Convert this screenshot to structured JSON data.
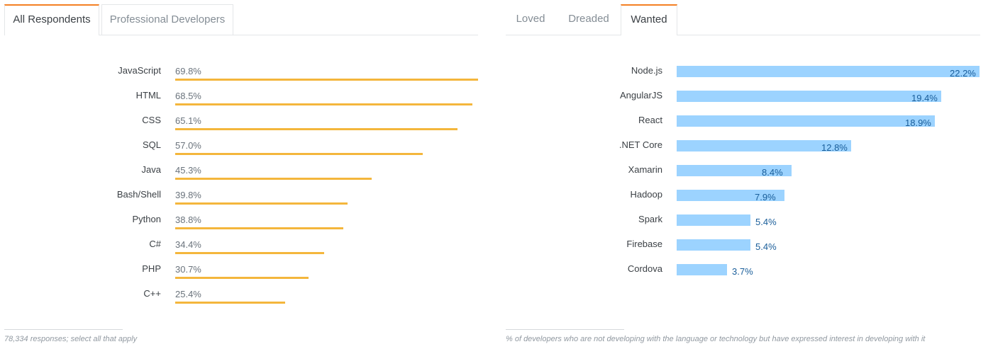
{
  "left": {
    "tabs": [
      {
        "label": "All Respondents",
        "active": true
      },
      {
        "label": "Professional Developers",
        "active": false
      }
    ],
    "footnote": "78,334 responses; select all that apply"
  },
  "right": {
    "tabs": [
      {
        "label": "Loved",
        "active": false
      },
      {
        "label": "Dreaded",
        "active": false
      },
      {
        "label": "Wanted",
        "active": true
      }
    ],
    "footnote": "% of developers who are not developing with the language or technology but have expressed interest in developing with it"
  },
  "colors": {
    "left_bar": "#f4b63c",
    "right_bar": "#9cd3ff",
    "right_value_text": "#1a5e9a",
    "active_tab_accent": "#f48024"
  },
  "chart_data": [
    {
      "type": "bar",
      "orientation": "horizontal",
      "categories": [
        "JavaScript",
        "HTML",
        "CSS",
        "SQL",
        "Java",
        "Bash/Shell",
        "Python",
        "C#",
        "PHP",
        "C++"
      ],
      "values": [
        69.8,
        68.5,
        65.1,
        57.0,
        45.3,
        39.8,
        38.8,
        34.4,
        30.7,
        25.4
      ],
      "value_labels": [
        "69.8%",
        "68.5%",
        "65.1%",
        "57.0%",
        "45.3%",
        "39.8%",
        "38.8%",
        "34.4%",
        "30.7%",
        "25.4%"
      ],
      "xlim": [
        0,
        69.8
      ],
      "grid": false
    },
    {
      "type": "bar",
      "orientation": "horizontal",
      "categories": [
        "Node.js",
        "AngularJS",
        "React",
        ".NET Core",
        "Xamarin",
        "Hadoop",
        "Spark",
        "Firebase",
        "Cordova"
      ],
      "values": [
        22.2,
        19.4,
        18.9,
        12.8,
        8.4,
        7.9,
        5.4,
        5.4,
        3.7
      ],
      "value_labels": [
        "22.2%",
        "19.4%",
        "18.9%",
        "12.8%",
        "8.4%",
        "7.9%",
        "5.4%",
        "5.4%",
        "3.7%"
      ],
      "xlim": [
        0,
        22.2
      ],
      "grid": false
    }
  ]
}
